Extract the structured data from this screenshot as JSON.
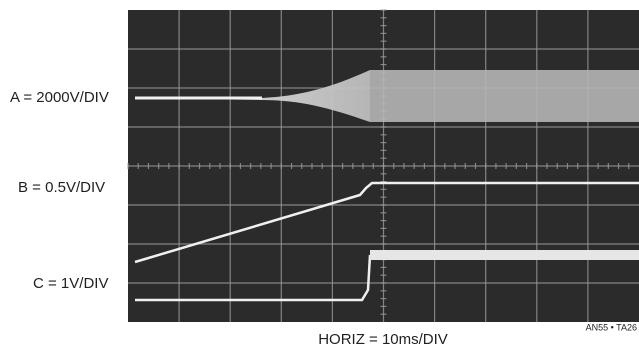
{
  "channels": [
    "A = 2000V/DIV",
    "B = 0.5V/DIV",
    "C = 1V/DIV"
  ],
  "horizontal": "HORIZ = 10ms/DIV",
  "figure_id": "AN55 • TA26"
}
